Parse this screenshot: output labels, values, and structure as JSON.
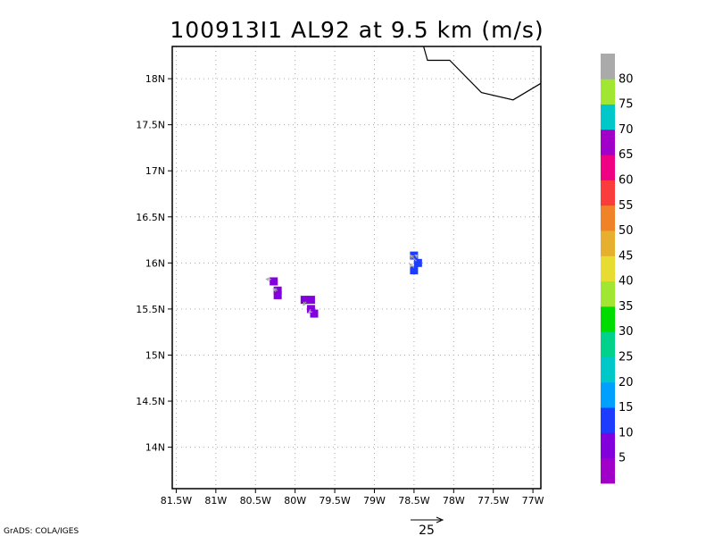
{
  "title": "100913I1 AL92 at 9.5 km (m/s)",
  "credit": "GrADS: COLA/IGES",
  "reference_vector": {
    "label": "25",
    "value": 25
  },
  "map": {
    "lon_range": [
      -81.55,
      -76.9
    ],
    "lat_range": [
      13.55,
      18.35
    ],
    "x_ticks": [
      {
        "lon": -81.5,
        "label": "81.5W"
      },
      {
        "lon": -81,
        "label": "81W"
      },
      {
        "lon": -80.5,
        "label": "80.5W"
      },
      {
        "lon": -80,
        "label": "80W"
      },
      {
        "lon": -79.5,
        "label": "79.5W"
      },
      {
        "lon": -79,
        "label": "79W"
      },
      {
        "lon": -78.5,
        "label": "78.5W"
      },
      {
        "lon": -78,
        "label": "78W"
      },
      {
        "lon": -77.5,
        "label": "77.5W"
      },
      {
        "lon": -77,
        "label": "77W"
      }
    ],
    "y_ticks": [
      {
        "lat": 14,
        "label": "14N"
      },
      {
        "lat": 14.5,
        "label": "14.5N"
      },
      {
        "lat": 15,
        "label": "15N"
      },
      {
        "lat": 15.5,
        "label": "15.5N"
      },
      {
        "lat": 16,
        "label": "16N"
      },
      {
        "lat": 16.5,
        "label": "16.5N"
      },
      {
        "lat": 17,
        "label": "17N"
      },
      {
        "lat": 17.5,
        "label": "17.5N"
      },
      {
        "lat": 18,
        "label": "18N"
      }
    ],
    "coastline": [
      [
        -78.38,
        18.35
      ],
      [
        -78.33,
        18.2
      ],
      [
        -78.05,
        18.2
      ],
      [
        -77.65,
        17.85
      ],
      [
        -77.25,
        17.77
      ],
      [
        -76.9,
        17.95
      ]
    ],
    "cells": [
      {
        "lon": -80.27,
        "lat": 15.8,
        "speed": 7
      },
      {
        "lon": -80.22,
        "lat": 15.7,
        "speed": 7
      },
      {
        "lon": -80.22,
        "lat": 15.65,
        "speed": 7
      },
      {
        "lon": -79.88,
        "lat": 15.6,
        "speed": 7
      },
      {
        "lon": -79.8,
        "lat": 15.6,
        "speed": 7
      },
      {
        "lon": -79.8,
        "lat": 15.5,
        "speed": 7
      },
      {
        "lon": -79.76,
        "lat": 15.45,
        "speed": 7
      },
      {
        "lon": -78.5,
        "lat": 16.08,
        "speed": 12
      },
      {
        "lon": -78.45,
        "lat": 16.0,
        "speed": 12
      },
      {
        "lon": -78.5,
        "lat": 15.92,
        "speed": 12
      }
    ],
    "vectors": [
      {
        "lon": -80.22,
        "lat": 15.7,
        "u": -3,
        "v": 1
      },
      {
        "lon": -80.3,
        "lat": 15.82,
        "u": -3.5,
        "v": 0.3
      },
      {
        "lon": -79.86,
        "lat": 15.58,
        "u": -2,
        "v": -2.5
      },
      {
        "lon": -79.8,
        "lat": 15.48,
        "u": -1.5,
        "v": -1
      },
      {
        "lon": -78.47,
        "lat": 16.02,
        "u": -4,
        "v": 4
      },
      {
        "lon": -78.5,
        "lat": 15.95,
        "u": -3,
        "v": 2.5
      },
      {
        "lon": -78.45,
        "lat": 16.07,
        "u": -2,
        "v": 1
      }
    ]
  },
  "colorbar": {
    "colors": [
      "#a000c8",
      "#8200dc",
      "#1e3cff",
      "#00a0ff",
      "#00c8c8",
      "#00d28c",
      "#00dc00",
      "#a0e632",
      "#e6dc32",
      "#e6af2d",
      "#f08228",
      "#fa3c3c",
      "#f00082",
      "#a000c8",
      "#00c8c8",
      "#a0e632",
      "#aaaaaa"
    ],
    "labels": [
      "5",
      "10",
      "15",
      "20",
      "25",
      "30",
      "35",
      "40",
      "45",
      "50",
      "55",
      "60",
      "65",
      "70",
      "75",
      "80"
    ]
  },
  "colors": {
    "vector": "#aaaaaa",
    "coast": "#000000",
    "grid": "#aaaaaa"
  }
}
